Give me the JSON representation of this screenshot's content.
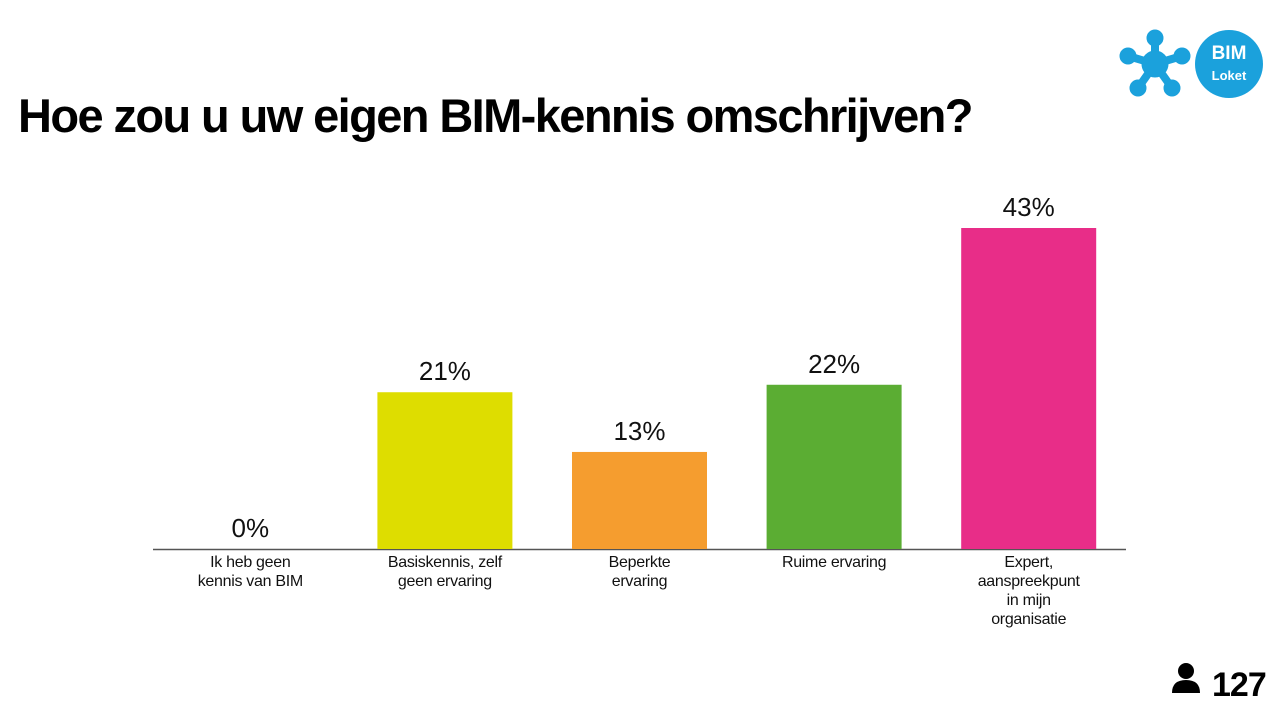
{
  "chart_data": {
    "type": "bar",
    "title": "Hoe zou u uw eigen BIM-kennis omschrijven?",
    "categories": [
      "Ik heb geen\nkennis van BIM",
      "Basiskennis, zelf\ngeen ervaring",
      "Beperkte\nervaring",
      "Ruime ervaring",
      "Expert,\naanspreekpunt\nin mijn\norganisatie"
    ],
    "values": [
      0,
      21,
      13,
      22,
      43
    ],
    "value_labels": [
      "0%",
      "21%",
      "13%",
      "22%",
      "43%"
    ],
    "colors": [
      "#9e9e9e",
      "#dedd00",
      "#f59d2f",
      "#5bad33",
      "#e82d88"
    ]
  },
  "logo": {
    "line1": "BIM",
    "line2": "Loket"
  },
  "responses": 127
}
